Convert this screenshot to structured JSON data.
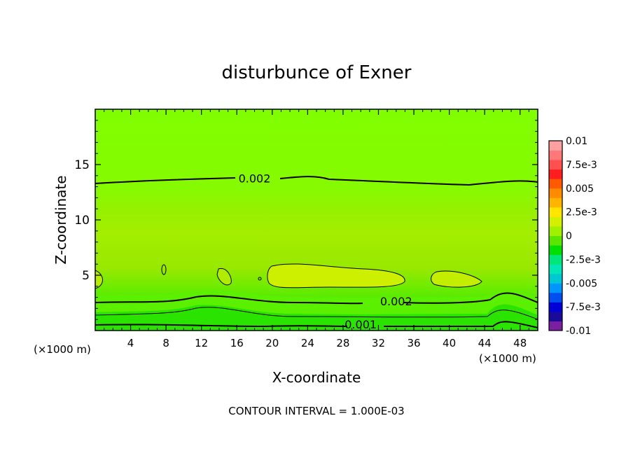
{
  "chart_data": {
    "type": "contour",
    "title": "disturbunce of Exner",
    "xlabel": "X-coordinate",
    "ylabel": "Z-coordinate",
    "x_unit_left": "(×1000 m)",
    "x_unit_right": "(×1000 m)",
    "footer": "CONTOUR INTERVAL = 1.000E-03",
    "xlim": [
      0,
      50
    ],
    "ylim": [
      0,
      20
    ],
    "x_ticks": [
      4,
      8,
      12,
      16,
      20,
      24,
      28,
      32,
      36,
      40,
      44,
      48
    ],
    "y_ticks": [
      5,
      10,
      15
    ],
    "contour_labels": [
      {
        "text": "0.002",
        "x": 18,
        "z": 13.7
      },
      {
        "text": "0.002",
        "x": 34,
        "z": 2.6
      },
      {
        "text": "0.001",
        "x": 30,
        "z": 0.5
      }
    ],
    "colorbar": {
      "tick_labels": [
        "0.01",
        "7.5e-3",
        "0.005",
        "2.5e-3",
        "0",
        "-2.5e-3",
        "-0.005",
        "-7.5e-3",
        "-0.01"
      ],
      "range": [
        -0.01,
        0.01
      ],
      "colors": [
        "#7b1fa2",
        "#1a0a9a",
        "#0000d8",
        "#0050f0",
        "#0096ff",
        "#00c8d2",
        "#00e6b4",
        "#00e678",
        "#00e000",
        "#5ae600",
        "#a0f000",
        "#d2f000",
        "#ffe600",
        "#ffb400",
        "#ff8c00",
        "#ff5a00",
        "#ff1e1e",
        "#ff5050",
        "#ff7878",
        "#ffa0a0"
      ]
    }
  }
}
